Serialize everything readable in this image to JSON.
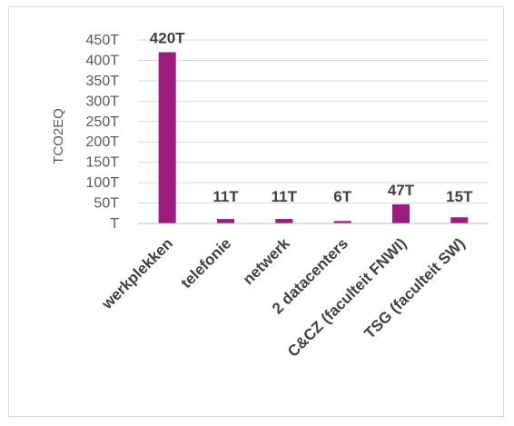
{
  "chart_data": {
    "type": "bar",
    "categories": [
      "werkplekken",
      "telefonie",
      "netwerk",
      "2 datacenters",
      "C&CZ (faculteit FNWI)",
      "TSG (faculteit SW)"
    ],
    "values": [
      420,
      11,
      11,
      6,
      47,
      15
    ],
    "data_labels": [
      "420T",
      "11T",
      "11T",
      "6T",
      "47T",
      "15T"
    ],
    "ylabel": "TCO2EQ",
    "ylim": [
      0,
      450
    ],
    "yticks": [
      0,
      50,
      100,
      150,
      200,
      250,
      300,
      350,
      400,
      450
    ],
    "ytick_labels": [
      "T",
      "50T",
      "100T",
      "150T",
      "200T",
      "250T",
      "300T",
      "350T",
      "400T",
      "450T"
    ],
    "grid": true,
    "legend": "none",
    "bar_color": "#9b1b7e"
  }
}
